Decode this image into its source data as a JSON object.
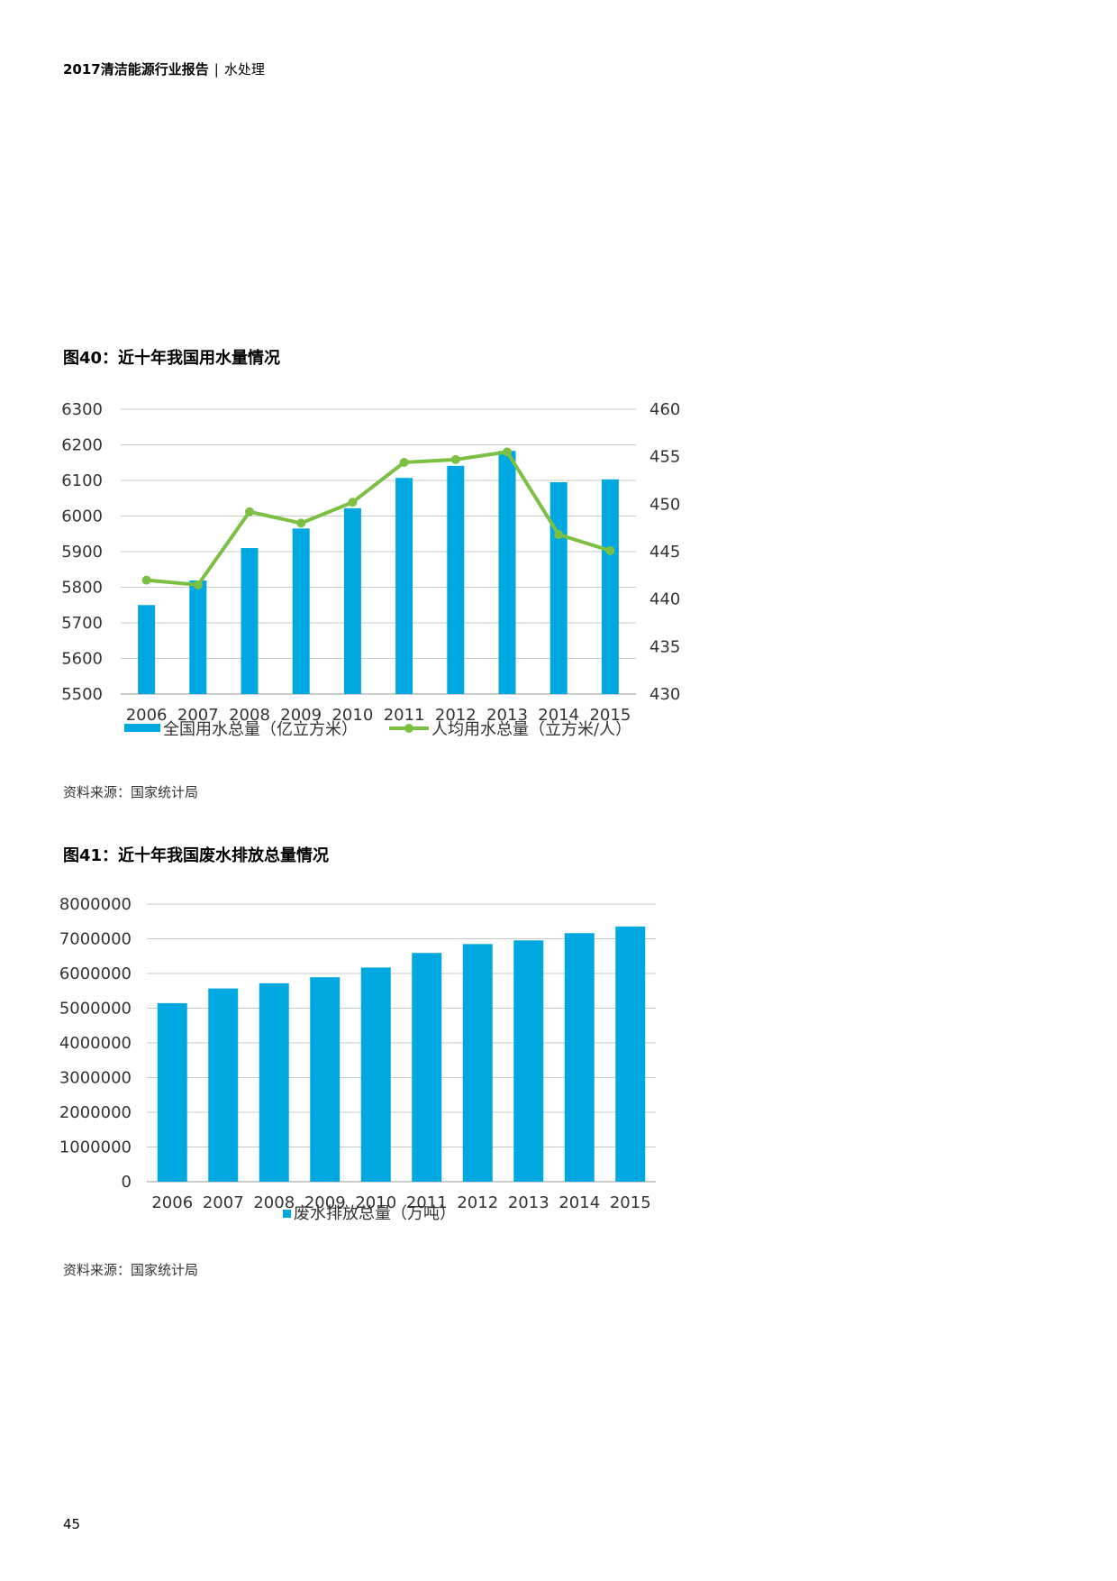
{
  "header": {
    "report": "2017清洁能源行业报告",
    "separator": "|",
    "section": "水处理"
  },
  "page_number": "45",
  "colors": {
    "bar": "#00a8e1",
    "line": "#7cc043",
    "grid": "#c8c8c8",
    "axis": "#999999"
  },
  "figures": [
    {
      "title": "图40：近十年我国用水量情况",
      "source": "资料来源：国家统计局"
    },
    {
      "title": "图41：近十年我国废水排放总量情况",
      "source": "资料来源：国家统计局"
    }
  ],
  "chart_data": [
    {
      "type": "bar+line",
      "title": "图40：近十年我国用水量情况",
      "categories": [
        "2006",
        "2007",
        "2008",
        "2009",
        "2010",
        "2011",
        "2012",
        "2013",
        "2014",
        "2015"
      ],
      "series": [
        {
          "name": "全国用水总量（亿立方米）",
          "type": "bar",
          "axis": "left",
          "values": [
            5750,
            5819,
            5910,
            5965,
            6022,
            6107,
            6141,
            6183,
            6095,
            6103
          ]
        },
        {
          "name": "人均用水总量（立方米/人）",
          "type": "line",
          "axis": "right",
          "values": [
            442.0,
            441.5,
            449.2,
            448.0,
            450.2,
            454.4,
            454.7,
            455.5,
            446.8,
            445.1
          ]
        }
      ],
      "y_left": {
        "min": 5500,
        "max": 6300,
        "ticks": [
          "6300",
          "6200",
          "6100",
          "6000",
          "5900",
          "5800",
          "5700",
          "5600",
          "5500"
        ]
      },
      "y_right": {
        "min": 430,
        "max": 460,
        "ticks": [
          "460",
          "455",
          "450",
          "445",
          "440",
          "435",
          "430"
        ]
      },
      "legend": [
        "全国用水总量（亿立方米）",
        "人均用水总量（立方米/人）"
      ],
      "legend_position": "bottom"
    },
    {
      "type": "bar",
      "title": "图41：近十年我国废水排放总量情况",
      "categories": [
        "2006",
        "2007",
        "2008",
        "2009",
        "2010",
        "2011",
        "2012",
        "2013",
        "2014",
        "2015"
      ],
      "series": [
        {
          "name": "废水排放总量（万吨）",
          "values": [
            5145000,
            5568000,
            5717000,
            5891000,
            6172000,
            6591000,
            6848000,
            6954000,
            7162000,
            7354000
          ]
        }
      ],
      "y": {
        "min": 0,
        "max": 8000000,
        "ticks": [
          "8000000",
          "7000000",
          "6000000",
          "5000000",
          "4000000",
          "3000000",
          "2000000",
          "1000000",
          "0"
        ]
      },
      "legend": [
        "废水排放总量（万吨）"
      ],
      "legend_position": "bottom"
    }
  ]
}
